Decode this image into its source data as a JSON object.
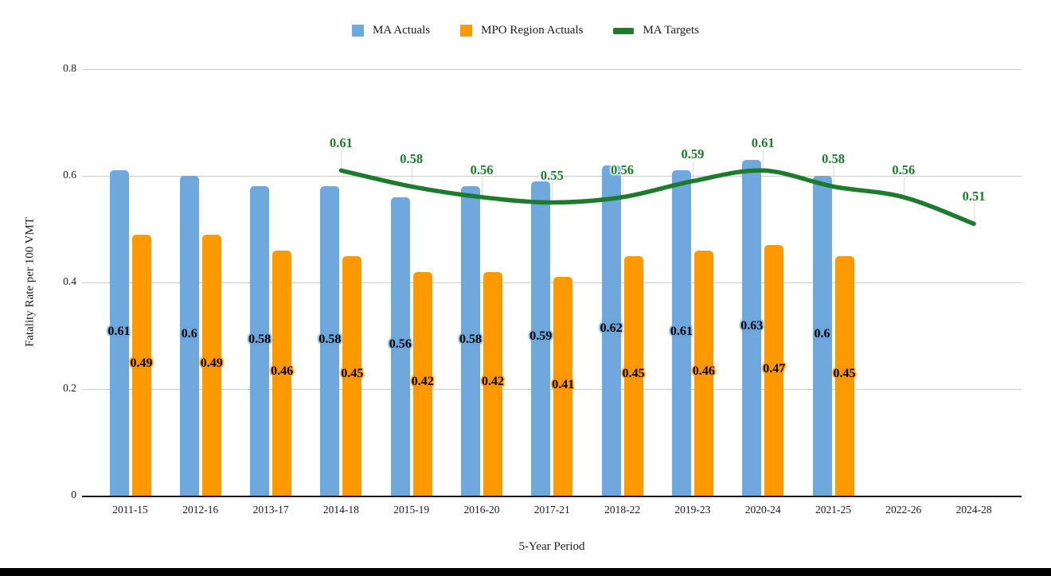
{
  "page": {
    "background": "#ffffff",
    "bottom_bar_color": "#000000"
  },
  "legend": {
    "items": [
      {
        "label": "MA Actuals",
        "color": "#6fa8dc",
        "marker": "square"
      },
      {
        "label": "MPO Region Actuals",
        "color": "#ff9900",
        "marker": "square"
      },
      {
        "label": "MA Targets",
        "color": "#1e7b2e",
        "marker": "line"
      }
    ]
  },
  "axes": {
    "x_title": "5-Year Period",
    "y_title": "Fatality Rate per 100 VMT",
    "y_tick_labels": [
      "0",
      "0.2",
      "0.4",
      "0.6",
      "0.8"
    ]
  },
  "chart_data": {
    "type": "bar",
    "subtype": "grouped-bars-with-target-line",
    "title": "",
    "xlabel": "5-Year Period",
    "ylabel": "Fatality Rate per 100 VMT",
    "ylim": [
      0,
      0.8
    ],
    "yticks": [
      0,
      0.2,
      0.4,
      0.6,
      0.8
    ],
    "grid": true,
    "legend_position": "top",
    "categories": [
      "2011-15",
      "2012-16",
      "2013-17",
      "2014-18",
      "2015-19",
      "2016-20",
      "2017-21",
      "2018-22",
      "2019-23",
      "2020-24",
      "2021-25",
      "2022-26",
      "2024-28"
    ],
    "series": [
      {
        "name": "MA Actuals",
        "type": "bar",
        "color": "#6fa8dc",
        "values": [
          0.61,
          0.6,
          0.58,
          0.58,
          0.56,
          0.58,
          0.59,
          0.62,
          0.61,
          0.63,
          0.6,
          null,
          null
        ]
      },
      {
        "name": "MPO Region Actuals",
        "type": "bar",
        "color": "#ff9900",
        "values": [
          0.49,
          0.49,
          0.46,
          0.45,
          0.42,
          0.42,
          0.41,
          0.45,
          0.46,
          0.47,
          0.45,
          null,
          null
        ]
      },
      {
        "name": "MA Targets",
        "type": "line",
        "color": "#1e7b2e",
        "values": [
          null,
          null,
          null,
          0.61,
          0.58,
          0.56,
          0.55,
          0.56,
          0.59,
          0.61,
          0.58,
          0.56,
          0.51
        ]
      }
    ]
  }
}
